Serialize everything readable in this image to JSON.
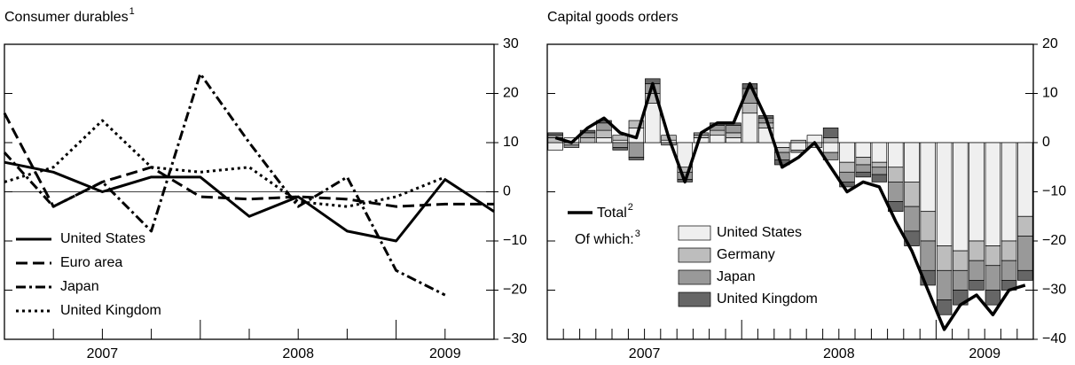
{
  "chart_data": [
    {
      "type": "line",
      "title": "Consumer durables",
      "title_footnote": "1",
      "x": [
        2007,
        2007.25,
        2007.5,
        2007.75,
        2008,
        2008.25,
        2008.5,
        2008.75,
        2009,
        2009.25,
        2009.5
      ],
      "series": [
        {
          "name": "United States",
          "color": "#000000",
          "line_style": "solid",
          "values": [
            6,
            4,
            0,
            3,
            3,
            -5,
            -1,
            -8,
            -10,
            2.5,
            -4
          ]
        },
        {
          "name": "Euro area",
          "color": "#000000",
          "line_style": "dashed",
          "values": [
            16,
            -3,
            2,
            5,
            -1,
            -1.5,
            -1,
            -1.5,
            -3,
            -2.5,
            -2.5
          ]
        },
        {
          "name": "Japan",
          "color": "#000000",
          "line_style": "dashdot",
          "values": [
            8,
            -3,
            2,
            -8,
            24,
            10,
            -3,
            3,
            -16,
            -21,
            null
          ]
        },
        {
          "name": "United Kingdom",
          "color": "#000000",
          "line_style": "dotted",
          "values": [
            2,
            5,
            14.5,
            5,
            4,
            5,
            -2,
            -3,
            -1,
            3,
            null
          ]
        }
      ],
      "xlim": [
        2007,
        2009.5
      ],
      "xticks": [
        {
          "value": 2007.5,
          "label": "2007"
        },
        {
          "value": 2008.5,
          "label": "2008"
        },
        {
          "value": 2009.25,
          "label": "2009"
        }
      ],
      "x_minor_ticks": [
        2007.25,
        2007.5,
        2007.75,
        2008,
        2008.25,
        2008.5,
        2008.75,
        2009,
        2009.25
      ],
      "ylim": [
        -30,
        30
      ],
      "yticks": [
        30,
        20,
        10,
        0,
        {
          "value": -10,
          "label": "−10"
        },
        {
          "value": -20,
          "label": "−20"
        },
        {
          "value": -30,
          "label": "−30"
        }
      ],
      "zero_line": true,
      "legend": "lower left"
    },
    {
      "type": "bar",
      "title": "Capital goods orders",
      "stacked": true,
      "x": [
        2007.042,
        2007.125,
        2007.208,
        2007.292,
        2007.375,
        2007.458,
        2007.542,
        2007.625,
        2007.708,
        2007.792,
        2007.875,
        2007.958,
        2008.042,
        2008.125,
        2008.208,
        2008.292,
        2008.375,
        2008.458,
        2008.542,
        2008.625,
        2008.708,
        2008.792,
        2008.875,
        2008.958,
        2009.042,
        2009.125,
        2009.208,
        2009.292,
        2009.375,
        2009.458
      ],
      "series": [
        {
          "name": "Total",
          "name_footnote": "2",
          "type": "line",
          "color": "#000000",
          "values": [
            1,
            0,
            3,
            5,
            2,
            1,
            12,
            1,
            -8,
            2,
            4,
            4,
            12,
            5,
            -5,
            -3,
            0,
            -5,
            -10,
            -8,
            -9,
            -16,
            -22,
            -30,
            -38,
            -33,
            -31,
            -35,
            -30,
            -29
          ]
        },
        {
          "name": "United States",
          "type": "bar",
          "color": "#efefef",
          "values": [
            -1.5,
            1,
            0,
            1,
            0.5,
            3,
            8,
            0.5,
            -5,
            1,
            1.5,
            1,
            6,
            3,
            -1,
            -1.5,
            1.5,
            -2,
            -4,
            -3,
            -4,
            -5,
            -8,
            -14,
            -21,
            -22,
            -20,
            -21,
            -20,
            -15
          ]
        },
        {
          "name": "Germany",
          "type": "bar",
          "color": "#bdbdbd",
          "values": [
            1,
            -0.5,
            1,
            1.5,
            1,
            1.5,
            2,
            1,
            -1,
            0.5,
            1,
            1,
            2,
            1,
            -1,
            0.5,
            -1,
            1,
            -2,
            -1.5,
            -1,
            -3,
            -5,
            -6,
            -5,
            -4,
            -4,
            -4,
            -4,
            -4
          ]
        },
        {
          "name": "Japan",
          "type": "bar",
          "color": "#999999",
          "values": [
            0.5,
            -0.5,
            1,
            1.5,
            -1,
            -3,
            2,
            -0.5,
            -1.5,
            0.5,
            1,
            1.5,
            3,
            1,
            -1.5,
            -0.5,
            0,
            -1.5,
            -2,
            -1.5,
            -1.5,
            -4,
            -5,
            -6,
            -6,
            -4,
            -4,
            -5,
            -4,
            -7
          ]
        },
        {
          "name": "United Kingdom",
          "type": "bar",
          "color": "#666666",
          "values": [
            0.5,
            0,
            0.5,
            0.5,
            -0.5,
            -0.5,
            1,
            0,
            -0.5,
            0,
            0.5,
            0.5,
            1,
            0.5,
            -1,
            0,
            0,
            2,
            -1,
            -1,
            -1.5,
            -2,
            -3,
            -3,
            -3,
            -3,
            -2,
            -3,
            -2,
            -2
          ]
        }
      ],
      "legend_group_label": "Of which:",
      "legend_group_footnote": "3",
      "xlim": [
        2007,
        2009.5
      ],
      "xticks": [
        {
          "value": 2007.5,
          "label": "2007"
        },
        {
          "value": 2008.5,
          "label": "2008"
        },
        {
          "value": 2009.25,
          "label": "2009"
        }
      ],
      "x_minor_ticks": [
        2007.083,
        2007.167,
        2007.25,
        2007.333,
        2007.417,
        2007.5,
        2007.583,
        2007.667,
        2007.75,
        2007.833,
        2007.917,
        2008,
        2008.083,
        2008.167,
        2008.25,
        2008.333,
        2008.417,
        2008.5,
        2008.583,
        2008.667,
        2008.75,
        2008.833,
        2008.917,
        2009,
        2009.083,
        2009.167,
        2009.25,
        2009.333,
        2009.417
      ],
      "ylim": [
        -40,
        20
      ],
      "yticks": [
        20,
        10,
        0,
        {
          "value": -10,
          "label": "−10"
        },
        {
          "value": -20,
          "label": "−20"
        },
        {
          "value": -30,
          "label": "−30"
        },
        {
          "value": -40,
          "label": "−40"
        }
      ],
      "zero_line": true,
      "legend": "lower center"
    }
  ]
}
